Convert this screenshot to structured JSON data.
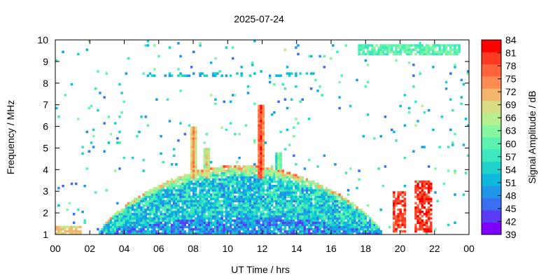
{
  "chart_data": {
    "type": "heatmap",
    "title": "2025-07-24",
    "xlabel": "UT Time / hrs",
    "ylabel": "Frequency / MHz",
    "xlim": [
      0,
      24
    ],
    "ylim": [
      1,
      10
    ],
    "x_ticks": [
      "00",
      "02",
      "04",
      "06",
      "08",
      "10",
      "12",
      "14",
      "16",
      "18",
      "20",
      "22",
      "00"
    ],
    "y_ticks": [
      "1",
      "2",
      "3",
      "4",
      "5",
      "6",
      "7",
      "8",
      "9",
      "10"
    ],
    "colorbar": {
      "label": "Signal Amplitude / dB",
      "min": 39,
      "max": 84,
      "ticks": [
        "39",
        "42",
        "45",
        "48",
        "51",
        "54",
        "57",
        "60",
        "63",
        "66",
        "69",
        "72",
        "75",
        "78",
        "81",
        "84"
      ],
      "colors": [
        "#7f00ff",
        "#5a3cf5",
        "#3b6ef0",
        "#1f96e8",
        "#0cb8dc",
        "#1ed2cc",
        "#3ee8be",
        "#5cf2b0",
        "#86f6a0",
        "#b6ee90",
        "#d8dc82",
        "#f4b66c",
        "#fc8c52",
        "#ff643c",
        "#ff3a22",
        "#ff0000"
      ]
    },
    "features": [
      {
        "kind": "dome",
        "t_start": 2.5,
        "t_end": 19.0,
        "f_top_peak": 4.2,
        "amp_core": 54,
        "amp_edge": 72
      },
      {
        "kind": "burst",
        "t": 8.0,
        "f_top": 6.0,
        "amp": 76
      },
      {
        "kind": "burst",
        "t": 8.8,
        "f_top": 5.0,
        "amp": 72
      },
      {
        "kind": "burst",
        "t": 11.9,
        "f_top": 7.0,
        "amp": 82
      },
      {
        "kind": "burst",
        "t": 13.0,
        "f_top": 4.8,
        "amp": 66
      },
      {
        "kind": "patch",
        "t_start": 19.6,
        "t_end": 20.4,
        "f_low": 1.1,
        "f_high": 3.0,
        "amp": 79
      },
      {
        "kind": "patch",
        "t_start": 20.8,
        "t_end": 21.9,
        "f_low": 1.1,
        "f_high": 3.5,
        "amp": 80
      },
      {
        "kind": "line",
        "f": 8.4,
        "t_start": 5.0,
        "t_end": 15.0,
        "amp": 52
      },
      {
        "kind": "patch",
        "t_start": 0.0,
        "t_end": 1.5,
        "f_low": 1.0,
        "f_high": 1.4,
        "amp": 69
      },
      {
        "kind": "patch",
        "t_start": 17.5,
        "t_end": 23.5,
        "f_low": 9.3,
        "f_high": 9.8,
        "amp": 60
      }
    ]
  }
}
